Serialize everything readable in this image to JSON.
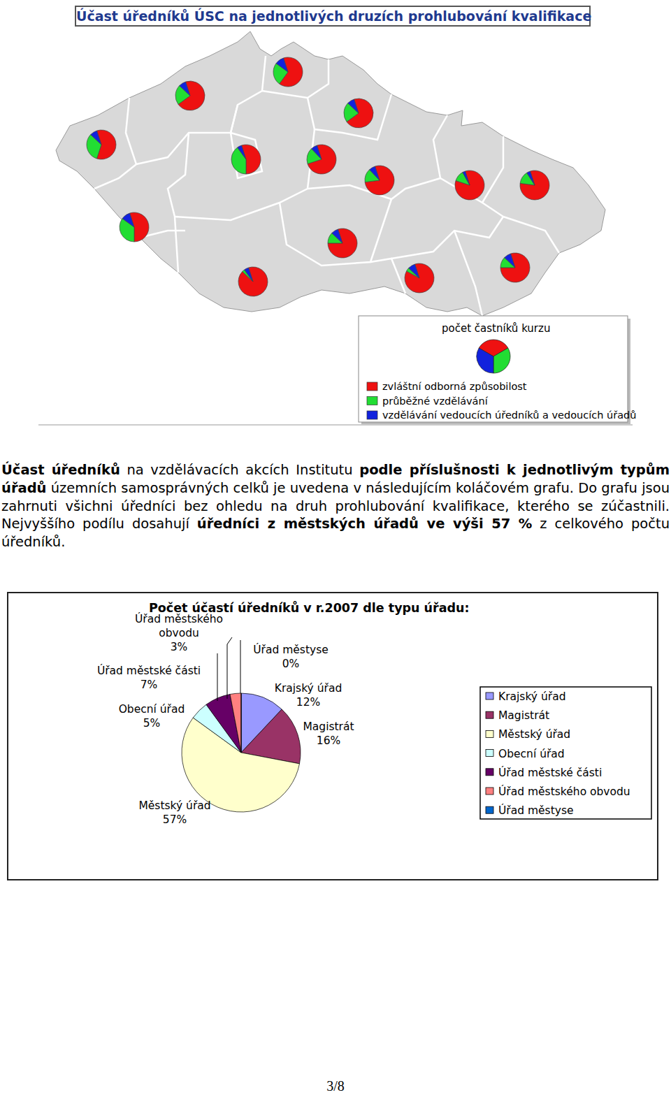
{
  "document": {
    "map": {
      "title": "Účast úředníků ÚSC na jednotlivých druzích prohlubování kvalifikace",
      "pies": [
        {
          "values": [
            60,
            32,
            8
          ]
        },
        {
          "values": [
            70,
            22,
            8
          ]
        },
        {
          "values": [
            65,
            25,
            10
          ]
        },
        {
          "values": [
            70,
            22,
            8
          ]
        },
        {
          "values": [
            75,
            18,
            7
          ]
        },
        {
          "values": [
            55,
            40,
            5
          ]
        },
        {
          "values": [
            78,
            15,
            7
          ]
        },
        {
          "values": [
            55,
            35,
            10
          ]
        },
        {
          "values": [
            92,
            3,
            5
          ]
        },
        {
          "values": [
            80,
            12,
            8
          ]
        },
        {
          "values": [
            88,
            4,
            8
          ]
        },
        {
          "values": [
            85,
            12,
            3
          ]
        },
        {
          "values": [
            82,
            14,
            4
          ]
        },
        {
          "values": [
            80,
            12,
            8
          ]
        }
      ],
      "legend": {
        "title": "počet častníků kurzu",
        "sample": [
          1,
          1,
          1
        ],
        "items": [
          {
            "label": "zvláštní odborná způsobilost",
            "color": "#ee1111"
          },
          {
            "label": "průběžné vzdělávání",
            "color": "#22dd33"
          },
          {
            "label": "vzdělávání vedoucích úředníků a vedoucích úřadů",
            "color": "#1122dd"
          }
        ]
      }
    },
    "paragraph": {
      "runs": [
        {
          "text": "Účast úředníků",
          "bold": true
        },
        {
          "text": " na vzdělávacích akcích Institutu ",
          "bold": false
        },
        {
          "text": "podle příslušnosti k jednotlivým typům úřadů",
          "bold": true
        },
        {
          "text": " územních samosprávných celků je uvedena v následujícím koláčovém grafu. Do grafu jsou zahrnuti všichni úředníci bez ohledu na druh prohlubování kvalifikace, kterého se zúčastnili. Nejvyššího podílu dosahují ",
          "bold": false
        },
        {
          "text": "úředníci z městských úřadů ve výši 57 %",
          "bold": true
        },
        {
          "text": " z celkového počtu úředníků.",
          "bold": false
        }
      ]
    },
    "page_number": "3/8"
  },
  "chart_data": {
    "type": "pie",
    "title": "Počet účastí úředníků v r.2007 dle typu úřadu:",
    "categories": [
      "Krajský úřad",
      "Magistrát",
      "Městský úřad",
      "Obecní úřad",
      "Úřad městské části",
      "Úřad městského obvodu",
      "Úřad městyse"
    ],
    "values": [
      12,
      16,
      57,
      5,
      7,
      3,
      0
    ],
    "value_labels": [
      "12%",
      "16%",
      "57%",
      "5%",
      "7%",
      "3%",
      "0%"
    ],
    "colors": [
      "#9999ff",
      "#993366",
      "#ffffcc",
      "#ccffff",
      "#660066",
      "#ff8080",
      "#0066cc"
    ],
    "data_labels": true,
    "legend": "right"
  }
}
